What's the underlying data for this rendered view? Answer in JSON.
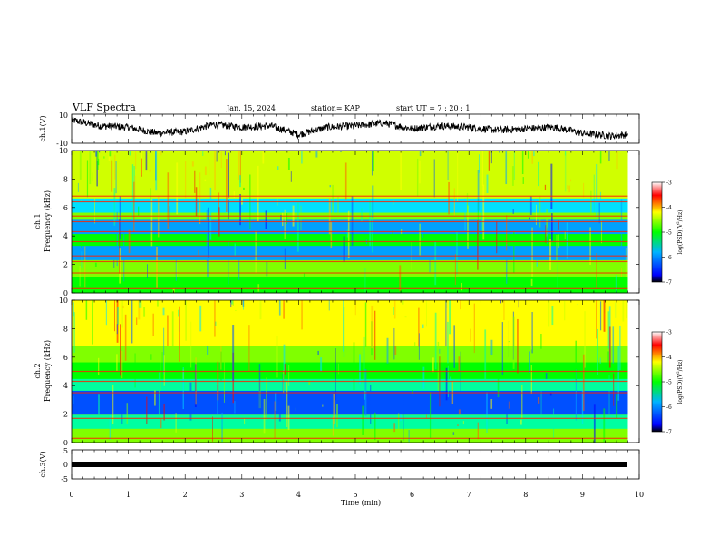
{
  "header": {
    "title": "VLF Spectra",
    "date": "Jan. 15, 2024",
    "station": "station= KAP",
    "start": "start  UT =   7 : 20 : 1"
  },
  "chart_data": [
    {
      "type": "line",
      "panel": "ch1-waveform",
      "ylabel": "ch.1(V)",
      "ylim": [
        -10,
        10
      ],
      "yticks": [
        "10",
        "-10"
      ],
      "x": [
        0,
        0.5,
        1,
        1.5,
        2,
        2.5,
        3,
        3.5,
        4,
        4.5,
        5,
        5.5,
        6,
        6.5,
        7,
        7.5,
        8,
        8.5,
        9,
        9.5,
        9.8
      ],
      "values": [
        6,
        2,
        1,
        -3,
        -2,
        3,
        1,
        2,
        -4,
        1,
        2,
        4,
        0,
        2,
        1,
        -1,
        0,
        1,
        -3,
        -5,
        -4
      ]
    },
    {
      "type": "heatmap",
      "panel": "ch1-spectrogram",
      "ylabel": "ch.1\nFrequency (kHz)",
      "ylim": [
        0,
        10
      ],
      "yticks": [
        "0",
        "2",
        "4",
        "6",
        "8",
        "10"
      ],
      "xlim": [
        0,
        9.8
      ],
      "description_bands_khz": [
        0.3,
        1.4,
        2.2,
        2.6,
        3.6,
        4.3,
        5.0,
        5.4,
        6.4,
        6.8
      ],
      "colorbar": {
        "label": "log(PSD)(V²/Hz)",
        "range": [
          -7,
          -3
        ],
        "ticks": [
          "-3",
          "-4",
          "-5",
          "-6",
          "-7"
        ]
      }
    },
    {
      "type": "heatmap",
      "panel": "ch2-spectrogram",
      "ylabel": "ch.2\nFrequency (kHz)",
      "ylim": [
        0,
        10
      ],
      "yticks": [
        "0",
        "2",
        "4",
        "6",
        "8",
        "10"
      ],
      "xlim": [
        0,
        9.8
      ],
      "description_bands_khz": [
        0.3,
        1.7,
        2.0,
        3.5,
        4.3,
        5.0
      ],
      "colorbar": {
        "label": "log(PSD)(V²/Hz)",
        "range": [
          -7,
          -3
        ],
        "ticks": [
          "-3",
          "-4",
          "-5",
          "-6",
          "-7"
        ]
      }
    },
    {
      "type": "line",
      "panel": "ch3-waveform",
      "ylabel": "ch.3(V)",
      "ylim": [
        -5,
        5
      ],
      "yticks": [
        "5",
        "0",
        "-5"
      ],
      "x": [
        0,
        9.8
      ],
      "values": [
        0,
        0
      ]
    }
  ],
  "axes": {
    "xlabel": "Time  (min)",
    "xticks": [
      "0",
      "1",
      "2",
      "3",
      "4",
      "5",
      "6",
      "7",
      "8",
      "9",
      "10"
    ],
    "xlim": [
      0,
      10
    ]
  },
  "colorbar_labels": {
    "unit1": "log(PSD)(V",
    "unit2": "/Hz)",
    "sup": "2"
  }
}
